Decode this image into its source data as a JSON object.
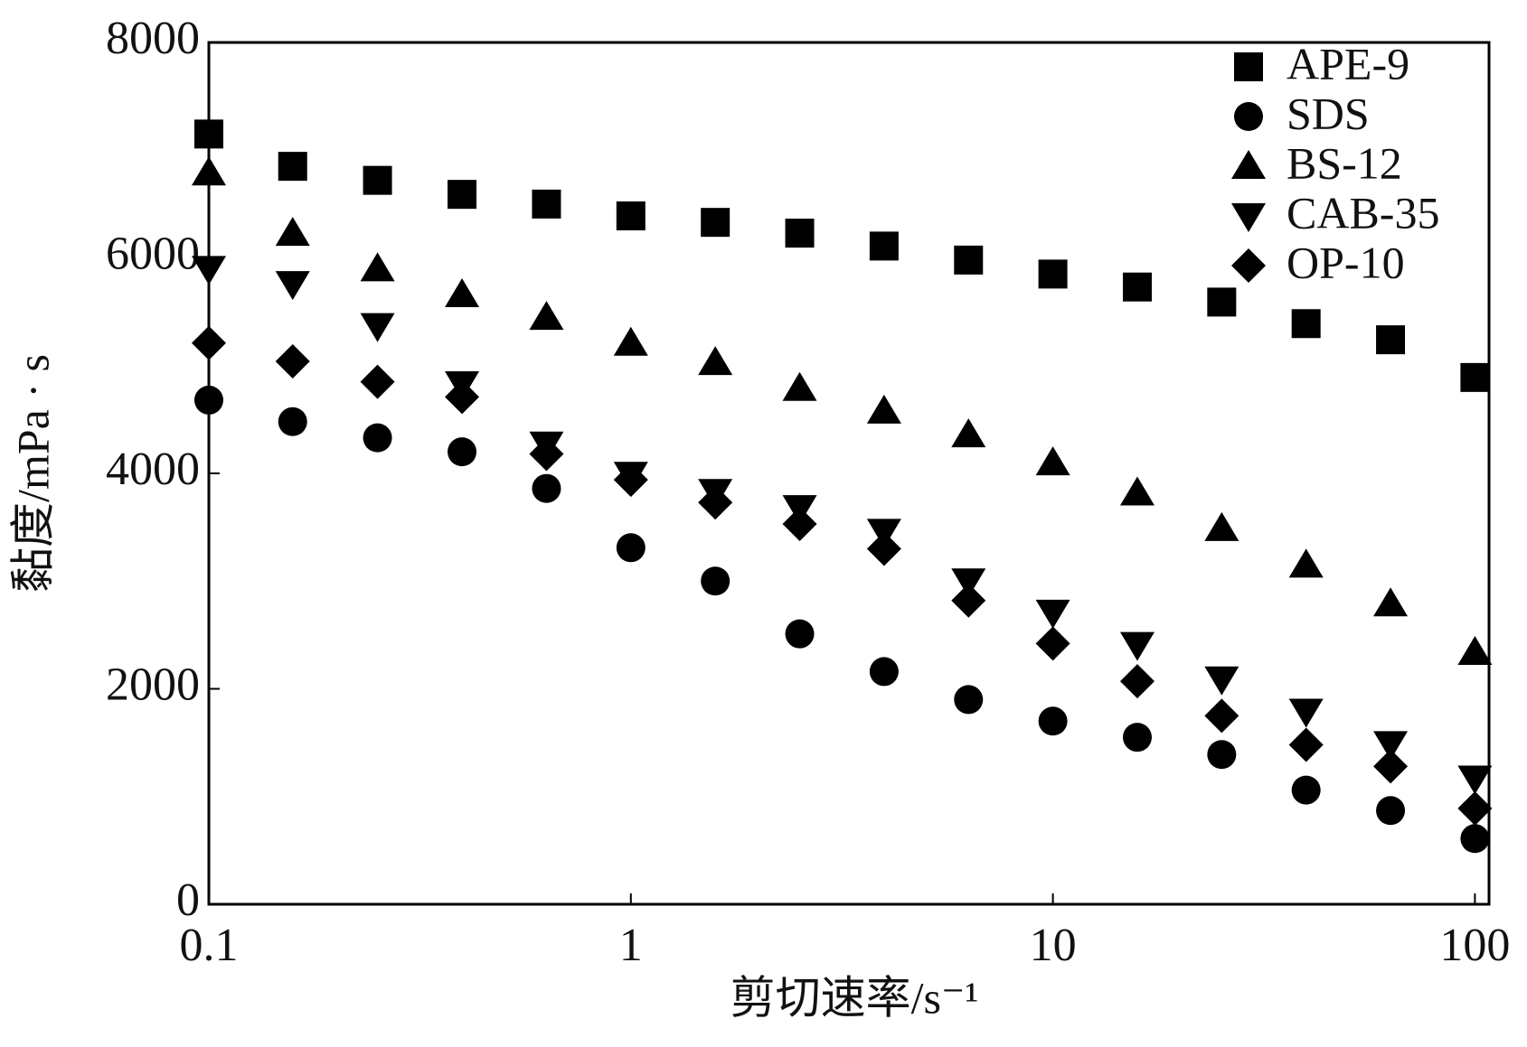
{
  "chart_data": {
    "type": "scatter",
    "x_label": "剪切速率/s⁻¹",
    "y_label": "黏度/mPa · s",
    "x": [
      0.1,
      0.158,
      0.251,
      0.398,
      0.631,
      1,
      1.585,
      2.512,
      3.981,
      6.31,
      10,
      15.85,
      25.12,
      39.81,
      63.1,
      100
    ],
    "series": [
      {
        "name": "APE-9",
        "color": "#000000",
        "marker": "square",
        "values": [
          7150,
          6850,
          6720,
          6590,
          6500,
          6390,
          6330,
          6230,
          6110,
          5980,
          5850,
          5730,
          5590,
          5390,
          5240,
          4890
        ]
      },
      {
        "name": "SDS",
        "color": "#000000",
        "marker": "circle",
        "values": [
          4680,
          4480,
          4330,
          4200,
          3860,
          3310,
          3000,
          2510,
          2160,
          1900,
          1700,
          1550,
          1390,
          1060,
          870,
          610
        ]
      },
      {
        "name": "BS-12",
        "color": "#000000",
        "marker": "triangle",
        "values": [
          6790,
          6230,
          5900,
          5660,
          5450,
          5210,
          5030,
          4790,
          4580,
          4360,
          4100,
          3820,
          3490,
          3150,
          2790,
          2340
        ]
      },
      {
        "name": "CAB-35",
        "color": "#000000",
        "marker": "triangle-down",
        "values": [
          5900,
          5760,
          5370,
          4830,
          4270,
          3990,
          3830,
          3680,
          3460,
          3000,
          2710,
          2410,
          2090,
          1790,
          1490,
          1170
        ]
      },
      {
        "name": "OP-10",
        "color": "#000000",
        "marker": "diamond",
        "values": [
          5210,
          5040,
          4850,
          4710,
          4180,
          3940,
          3730,
          3530,
          3300,
          2820,
          2420,
          2070,
          1750,
          1480,
          1280,
          890
        ]
      }
    ],
    "xscale": "log",
    "xlim": [
      0.1,
      108
    ],
    "xticks": [
      0.1,
      1,
      10,
      100
    ],
    "ylim": [
      0,
      8000
    ],
    "yticks": [
      0,
      2000,
      4000,
      6000,
      8000
    ],
    "grid": false,
    "legend": "upper right"
  }
}
